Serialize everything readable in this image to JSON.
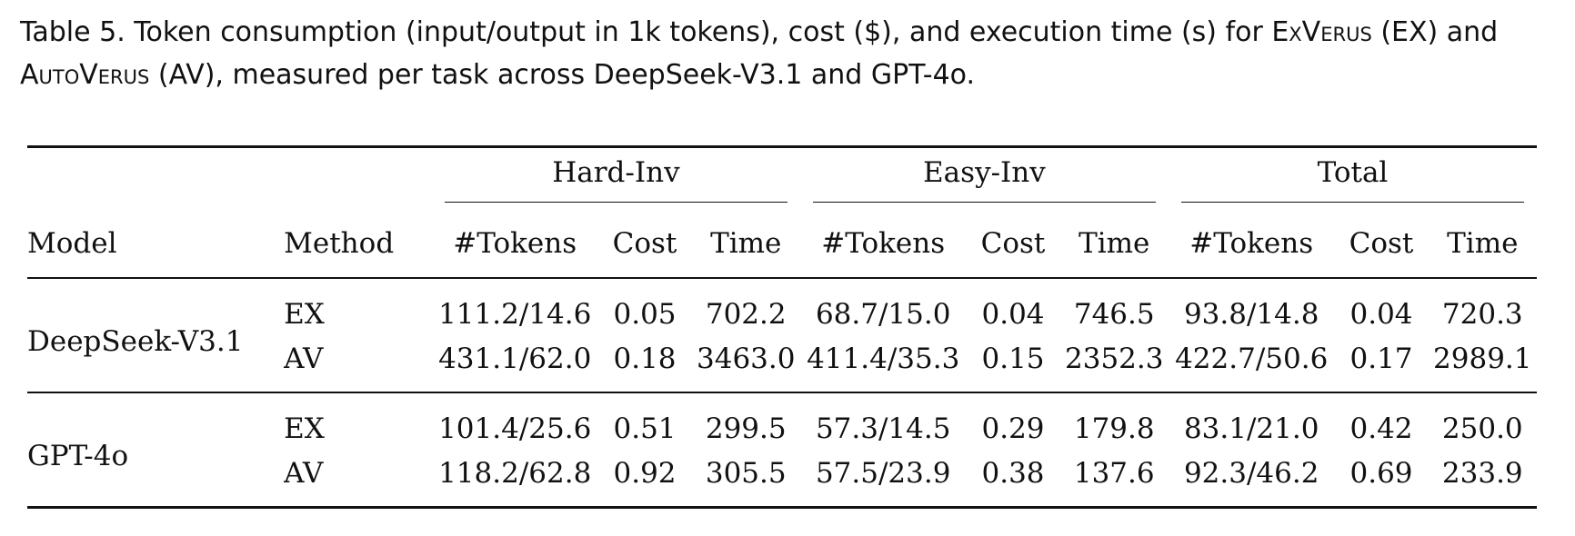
{
  "caption": {
    "label": "Table 5.",
    "text_1": "Token consumption (input/output in 1k tokens), cost ($), and execution time (s) for ",
    "exverus": "ExVerus",
    "text_2": " (EX) and ",
    "autoverus": "AutoVerus",
    "text_3": " (AV), measured per task across DeepSeek-V3.1 and GPT-4o."
  },
  "table": {
    "groups": [
      "Hard-Inv",
      "Easy-Inv",
      "Total"
    ],
    "headers": {
      "model": "Model",
      "method": "Method",
      "tokens": "#Tokens",
      "cost": "Cost",
      "time": "Time"
    },
    "blocks": [
      {
        "model": "DeepSeek-V3.1",
        "rows": [
          {
            "method": "EX",
            "hard": {
              "tokens": "111.2/14.6",
              "cost": "0.05",
              "time": "702.2"
            },
            "easy": {
              "tokens": "68.7/15.0",
              "cost": "0.04",
              "time": "746.5"
            },
            "total": {
              "tokens": "93.8/14.8",
              "cost": "0.04",
              "time": "720.3"
            }
          },
          {
            "method": "AV",
            "hard": {
              "tokens": "431.1/62.0",
              "cost": "0.18",
              "time": "3463.0"
            },
            "easy": {
              "tokens": "411.4/35.3",
              "cost": "0.15",
              "time": "2352.3"
            },
            "total": {
              "tokens": "422.7/50.6",
              "cost": "0.17",
              "time": "2989.1"
            }
          }
        ]
      },
      {
        "model": "GPT-4o",
        "rows": [
          {
            "method": "EX",
            "hard": {
              "tokens": "101.4/25.6",
              "cost": "0.51",
              "time": "299.5"
            },
            "easy": {
              "tokens": "57.3/14.5",
              "cost": "0.29",
              "time": "179.8"
            },
            "total": {
              "tokens": "83.1/21.0",
              "cost": "0.42",
              "time": "250.0"
            }
          },
          {
            "method": "AV",
            "hard": {
              "tokens": "118.2/62.8",
              "cost": "0.92",
              "time": "305.5"
            },
            "easy": {
              "tokens": "57.5/23.9",
              "cost": "0.38",
              "time": "137.6"
            },
            "total": {
              "tokens": "92.3/46.2",
              "cost": "0.69",
              "time": "233.9"
            }
          }
        ]
      }
    ]
  }
}
